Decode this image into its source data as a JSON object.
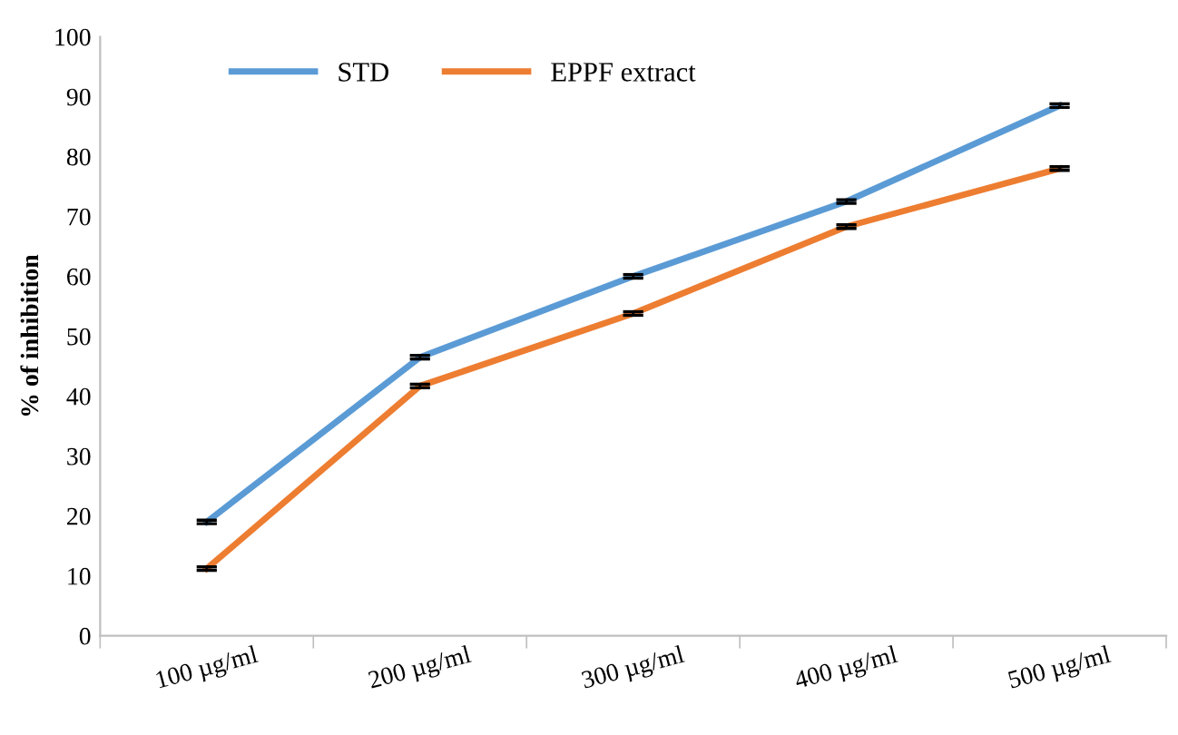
{
  "chart_data": {
    "type": "line",
    "ylabel": "% of inhibition",
    "categories": [
      "100 µg/ml",
      "200 µg/ml",
      "300 µg/ml",
      "400 µg/ml",
      "500 µg/ml"
    ],
    "series": [
      {
        "name": "STD",
        "color": "#5b9bd5",
        "values": [
          19,
          46.5,
          60,
          72.5,
          88.5
        ],
        "errors": [
          0.3,
          0.3,
          0.3,
          0.3,
          0.3
        ]
      },
      {
        "name": "EPPF extract",
        "color": "#ed7d31",
        "values": [
          11.2,
          41.7,
          53.8,
          68.3,
          78
        ],
        "errors": [
          0.3,
          0.3,
          0.3,
          0.3,
          0.3
        ]
      }
    ],
    "ylim": [
      0,
      100
    ],
    "yticks": [
      0,
      10,
      20,
      30,
      40,
      50,
      60,
      70,
      80,
      90,
      100
    ],
    "grid": false,
    "legend": "top left",
    "marker": "none",
    "line_style": "solid"
  }
}
